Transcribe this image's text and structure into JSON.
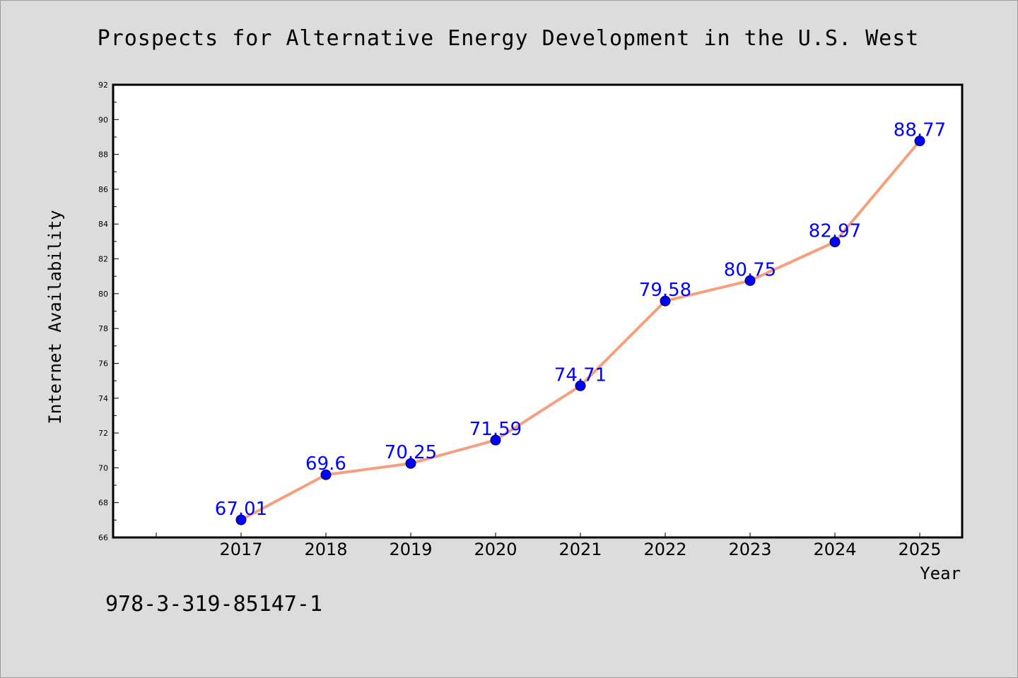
{
  "chart_data": {
    "type": "line",
    "title": "Prospects for Alternative Energy Development in the U.S. West",
    "xlabel": "Year",
    "ylabel": "Internet Availability",
    "categories": [
      "2017",
      "2018",
      "2019",
      "2020",
      "2021",
      "2022",
      "2023",
      "2024",
      "2025"
    ],
    "series": [
      {
        "values": [
          67.01,
          69.6,
          70.25,
          71.59,
          74.71,
          79.58,
          80.75,
          82.97,
          88.77
        ],
        "data_labels": [
          "67.01",
          "69.6",
          "70.25",
          "71.59",
          "74.71",
          "79.58",
          "80.75",
          "82.97",
          "88.77"
        ]
      }
    ],
    "ylim": [
      66,
      92
    ],
    "yticks": [
      "66",
      "68",
      "70",
      "72",
      "74",
      "76",
      "78",
      "80",
      "82",
      "84",
      "86",
      "88",
      "90",
      "92"
    ],
    "grid": false,
    "line_color": "#f4a07f",
    "marker_color": "#0000ff",
    "label_color": "#0000ff"
  },
  "footnote": "978-3-319-85147-1"
}
